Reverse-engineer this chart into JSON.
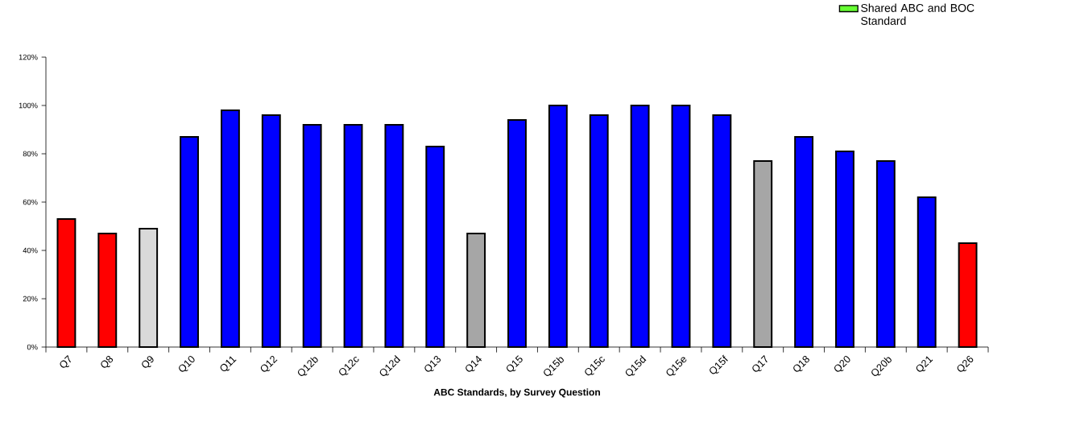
{
  "chart_data": {
    "type": "bar",
    "xlabel": "ABC Standards, by Survey Question",
    "categories": [
      "Q7",
      "Q8",
      "Q9",
      "Q10",
      "Q11",
      "Q12",
      "Q12b",
      "Q12c",
      "Q12d",
      "Q13",
      "Q14",
      "Q15",
      "Q15b",
      "Q15c",
      "Q15d",
      "Q15e",
      "Q15f",
      "Q17",
      "Q18",
      "Q20",
      "Q20b",
      "Q21",
      "Q26"
    ],
    "series": [
      {
        "values": [
          53,
          47,
          49,
          87,
          98,
          96,
          92,
          92,
          92,
          83,
          47,
          94,
          100,
          96,
          100,
          100,
          96,
          77,
          87,
          81,
          77,
          62,
          43
        ],
        "colors": [
          "#ff0000",
          "#ff0000",
          "#d9d9d9",
          "#0000ff",
          "#0000ff",
          "#0000ff",
          "#0000ff",
          "#0000ff",
          "#0000ff",
          "#0000ff",
          "#a6a6a6",
          "#0000ff",
          "#0000ff",
          "#0000ff",
          "#0000ff",
          "#0000ff",
          "#0000ff",
          "#a6a6a6",
          "#0000ff",
          "#0000ff",
          "#0000ff",
          "#0000ff",
          "#ff0000"
        ]
      },
      {
        "name": "Shared ABC and BOC Standard",
        "color": "#66ff33",
        "values": [
          null,
          null,
          null,
          null,
          null,
          null,
          null,
          null,
          null,
          null,
          null,
          null,
          null,
          null,
          null,
          null,
          null,
          null,
          null,
          null,
          null,
          null,
          null
        ]
      }
    ],
    "ylim": [
      0,
      120
    ],
    "yticks": [
      {
        "value": 0,
        "label": "0%"
      },
      {
        "value": 20,
        "label": "20%"
      },
      {
        "value": 40,
        "label": "40%"
      },
      {
        "value": 60,
        "label": "60%"
      },
      {
        "value": 80,
        "label": "80%"
      },
      {
        "value": 100,
        "label": "100%"
      },
      {
        "value": 120,
        "label": "120%"
      }
    ],
    "legend": "top right"
  }
}
